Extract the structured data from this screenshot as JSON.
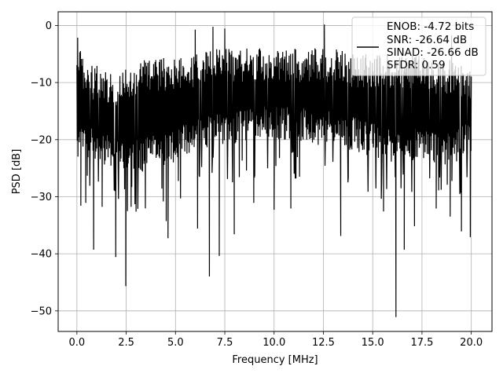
{
  "chart_data": {
    "type": "line",
    "title": "",
    "xlabel": "Frequency [MHz]",
    "ylabel": "PSD [dB]",
    "xlim": [
      -0.95,
      21.05
    ],
    "ylim": [
      -53.6,
      2.4
    ],
    "xticks": [
      0.0,
      2.5,
      5.0,
      7.5,
      10.0,
      12.5,
      15.0,
      17.5,
      20.0
    ],
    "xtick_labels": [
      "0.0",
      "2.5",
      "5.0",
      "7.5",
      "10.0",
      "12.5",
      "15.0",
      "17.5",
      "20.0"
    ],
    "yticks": [
      0,
      -10,
      -20,
      -30,
      -40,
      -50
    ],
    "ytick_labels": [
      "0",
      "−10",
      "−20",
      "−30",
      "−40",
      "−50"
    ],
    "grid": true,
    "legend": {
      "position": "top-right",
      "lines": [
        "ENOB: -4.72 bits",
        "SNR: -26.64 dB",
        "SINAD: -26.66 dB",
        "SFDR: 0.59"
      ]
    },
    "line_color": "#000000",
    "series_description": "dense noise-like PSD trace from 0 to 20 MHz; envelope ~-3 to -25 dB with downward spikes",
    "envelope": {
      "x": [
        0.0,
        0.1,
        0.5,
        1.0,
        2.0,
        3.0,
        4.0,
        5.0,
        6.0,
        7.0,
        8.0,
        9.0,
        10.0,
        11.0,
        12.0,
        13.0,
        14.0,
        15.0,
        16.0,
        17.0,
        18.0,
        19.0,
        20.0
      ],
      "upper": [
        -3,
        -3,
        -7,
        -7,
        -8,
        -6,
        -6,
        -5,
        -5,
        -4,
        -4,
        -4,
        -4,
        -4,
        -4,
        -4,
        -5,
        -5,
        -5,
        -5,
        -6,
        -6,
        -8
      ],
      "lower": [
        -24,
        -24,
        -23,
        -24,
        -25,
        -26,
        -25,
        -24,
        -22,
        -21,
        -21,
        -20,
        -20,
        -20,
        -21,
        -21,
        -22,
        -23,
        -24,
        -24,
        -24,
        -25,
        -22
      ]
    },
    "peaks": [
      {
        "x": 0.04,
        "y": -2.2
      },
      {
        "x": 6.0,
        "y": -0.8
      },
      {
        "x": 6.9,
        "y": -0.3
      },
      {
        "x": 7.5,
        "y": -0.6
      },
      {
        "x": 12.55,
        "y": 0.1
      },
      {
        "x": 19.0,
        "y": -1.8
      }
    ],
    "dips": [
      {
        "x": 0.2,
        "y": -31.5
      },
      {
        "x": 0.45,
        "y": -31.0
      },
      {
        "x": 0.85,
        "y": -39.2
      },
      {
        "x": 1.28,
        "y": -31.7
      },
      {
        "x": 1.97,
        "y": -40.5
      },
      {
        "x": 2.48,
        "y": -45.6
      },
      {
        "x": 2.75,
        "y": -31.7
      },
      {
        "x": 4.53,
        "y": -34.2
      },
      {
        "x": 4.62,
        "y": -37.2
      },
      {
        "x": 6.12,
        "y": -35.5
      },
      {
        "x": 6.72,
        "y": -43.9
      },
      {
        "x": 7.22,
        "y": -40.3
      },
      {
        "x": 7.98,
        "y": -36.5
      },
      {
        "x": 8.97,
        "y": -31.0
      },
      {
        "x": 10.0,
        "y": -32.2
      },
      {
        "x": 10.85,
        "y": -32.0
      },
      {
        "x": 13.38,
        "y": -36.8
      },
      {
        "x": 15.55,
        "y": -32.5
      },
      {
        "x": 16.18,
        "y": -51.0
      },
      {
        "x": 16.6,
        "y": -39.2
      },
      {
        "x": 17.12,
        "y": -35.1
      },
      {
        "x": 18.22,
        "y": -32.0
      },
      {
        "x": 18.93,
        "y": -33.4
      },
      {
        "x": 19.5,
        "y": -36.0
      },
      {
        "x": 19.95,
        "y": -37.0
      }
    ]
  }
}
